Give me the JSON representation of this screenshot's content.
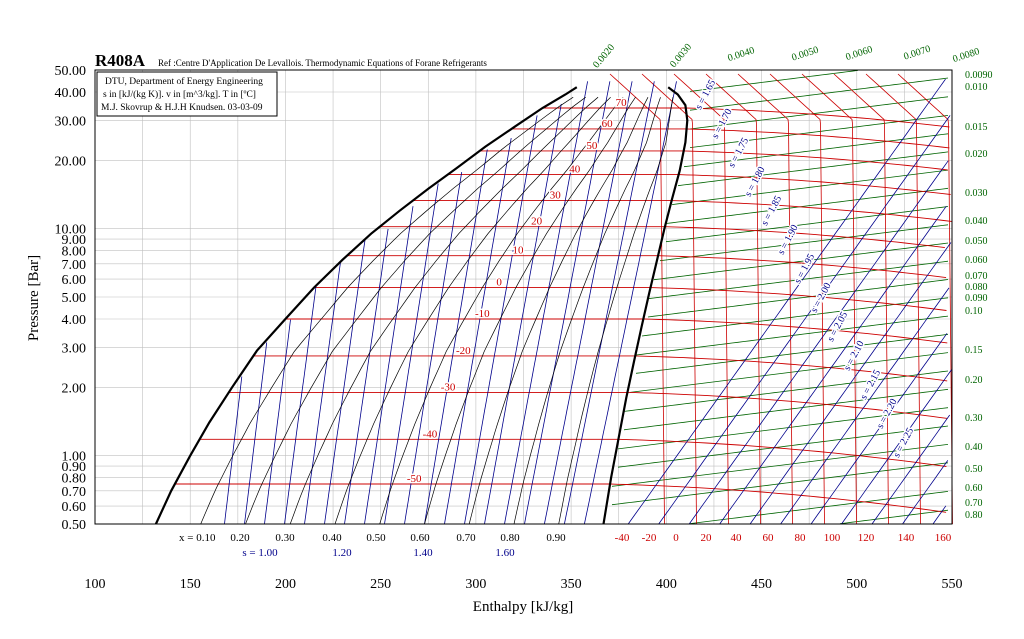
{
  "chart_data": {
    "type": "line",
    "title": "R408A",
    "subtitle": "Ref :Centre D'Application De Levallois. Thermodynamic Equations of Forane Refrigerants",
    "info_lines": [
      "DTU, Department of Energy Engineering",
      "s in [kJ/(kg K)]. v in [m^3/kg]. T in [ºC]",
      "M.J. Skovrup & H.J.H Knudsen. 03-03-09"
    ],
    "xlabel": "Enthalpy [kJ/kg]",
    "ylabel": "Pressure [Bar]",
    "xlim": [
      100,
      550
    ],
    "ylim": [
      0.5,
      50
    ],
    "yscale": "log",
    "grid": true,
    "x_ticks": [
      "100",
      "150",
      "200",
      "250",
      "300",
      "350",
      "400",
      "450",
      "500",
      "550"
    ],
    "y_ticks": [
      {
        "v": 50,
        "label": "50.00"
      },
      {
        "v": 40,
        "label": "40.00"
      },
      {
        "v": 30,
        "label": "30.00"
      },
      {
        "v": 20,
        "label": "20.00"
      },
      {
        "v": 10,
        "label": "10.00"
      },
      {
        "v": 9,
        "label": "9.00"
      },
      {
        "v": 8,
        "label": "8.00"
      },
      {
        "v": 7,
        "label": "7.00"
      },
      {
        "v": 6,
        "label": "6.00"
      },
      {
        "v": 5,
        "label": "5.00"
      },
      {
        "v": 4,
        "label": "4.00"
      },
      {
        "v": 3,
        "label": "3.00"
      },
      {
        "v": 2,
        "label": "2.00"
      },
      {
        "v": 1,
        "label": "1.00"
      },
      {
        "v": 0.9,
        "label": "0.90"
      },
      {
        "v": 0.8,
        "label": "0.80"
      },
      {
        "v": 0.7,
        "label": "0.70"
      },
      {
        "v": 0.6,
        "label": "0.60"
      },
      {
        "v": 0.5,
        "label": "0.50"
      }
    ],
    "saturation_liquid": [
      [
        132,
        0.5
      ],
      [
        140,
        0.7
      ],
      [
        150,
        1.0
      ],
      [
        160,
        1.4
      ],
      [
        172,
        2.0
      ],
      [
        185,
        2.9
      ],
      [
        200,
        4.0
      ],
      [
        215,
        5.5
      ],
      [
        230,
        7.3
      ],
      [
        245,
        9.5
      ],
      [
        260,
        12.0
      ],
      [
        275,
        15.0
      ],
      [
        290,
        18.5
      ],
      [
        305,
        23.0
      ],
      [
        320,
        28.0
      ],
      [
        335,
        34.0
      ],
      [
        347,
        39.0
      ],
      [
        353,
        42.0
      ]
    ],
    "saturation_vapor": [
      [
        367,
        0.5
      ],
      [
        371,
        0.8
      ],
      [
        375,
        1.2
      ],
      [
        379,
        1.8
      ],
      [
        383,
        2.6
      ],
      [
        387,
        3.7
      ],
      [
        391,
        5.2
      ],
      [
        395,
        7.2
      ],
      [
        399,
        10.0
      ],
      [
        403,
        13.5
      ],
      [
        407,
        18.0
      ],
      [
        410,
        24.0
      ],
      [
        411,
        30.0
      ],
      [
        410,
        35.0
      ],
      [
        406,
        39.0
      ],
      [
        401,
        42.0
      ]
    ],
    "isotherms_two_phase": [
      {
        "label": "-50",
        "p": 0.75
      },
      {
        "label": "-40",
        "p": 1.18
      },
      {
        "label": "-30",
        "p": 1.9
      },
      {
        "label": "-20",
        "p": 2.75
      },
      {
        "label": "-10",
        "p": 4.0
      },
      {
        "label": "0",
        "p": 5.5
      },
      {
        "label": "10",
        "p": 7.6
      },
      {
        "label": "20",
        "p": 10.2
      },
      {
        "label": "30",
        "p": 13.3
      },
      {
        "label": "40",
        "p": 17.3
      },
      {
        "label": "50",
        "p": 22.0
      },
      {
        "label": "60",
        "p": 27.5
      },
      {
        "label": "70",
        "p": 34.0
      }
    ],
    "quality_labels": [
      "x = 0.10",
      "0.20",
      "0.30",
      "0.40",
      "0.50",
      "0.60",
      "0.70",
      "0.80",
      "0.90"
    ],
    "entropy_bottom_labels": [
      "s = 1.00",
      "1.20",
      "1.40",
      "1.60"
    ],
    "entropy_vapor_labels": [
      "s = 1.65",
      "s = 1.70",
      "s = 1.75",
      "s = 1.80",
      "s = 1.85",
      "s = 1.90",
      "s = 1.95",
      "s = 2.00",
      "s = 2.05",
      "s = 2.10",
      "s = 2.15",
      "s = 2.20",
      "s = 2.25"
    ],
    "temperature_bottom_labels": [
      "-40",
      "-20",
      "0",
      "20",
      "40",
      "60",
      "80",
      "100",
      "120",
      "140",
      "160"
    ],
    "specific_volume_top_labels": [
      "0.0020",
      "0.0030",
      "0.0040",
      "0.0050",
      "0.0060",
      "0.0070",
      "0.0080"
    ],
    "specific_volume_right_labels": [
      "0.0090",
      "0.010",
      "0.015",
      "0.020",
      "0.030",
      "0.040",
      "0.050",
      "0.060",
      "0.070",
      "0.080",
      "0.090",
      "0.10",
      "0.15",
      "0.20",
      "0.30",
      "0.40",
      "0.50",
      "0.60",
      "0.70",
      "0.80"
    ],
    "colors": {
      "saturation": "#000000",
      "isotherm": "#cc0000",
      "isentrope": "#00008b",
      "isochore": "#006400",
      "grid": "#c0c0c0"
    }
  }
}
